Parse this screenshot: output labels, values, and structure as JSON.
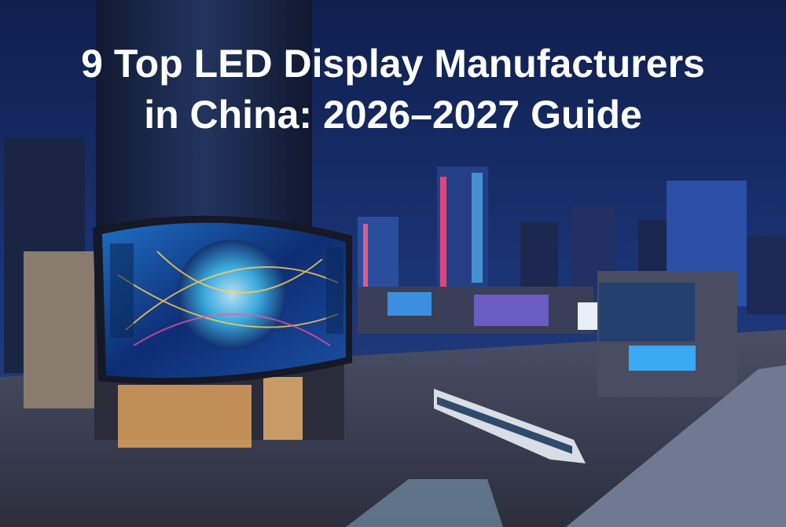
{
  "title": {
    "lines": [
      "9 Top LED Display Manufacturers",
      "in China: 2026–2027 Guide"
    ]
  }
}
